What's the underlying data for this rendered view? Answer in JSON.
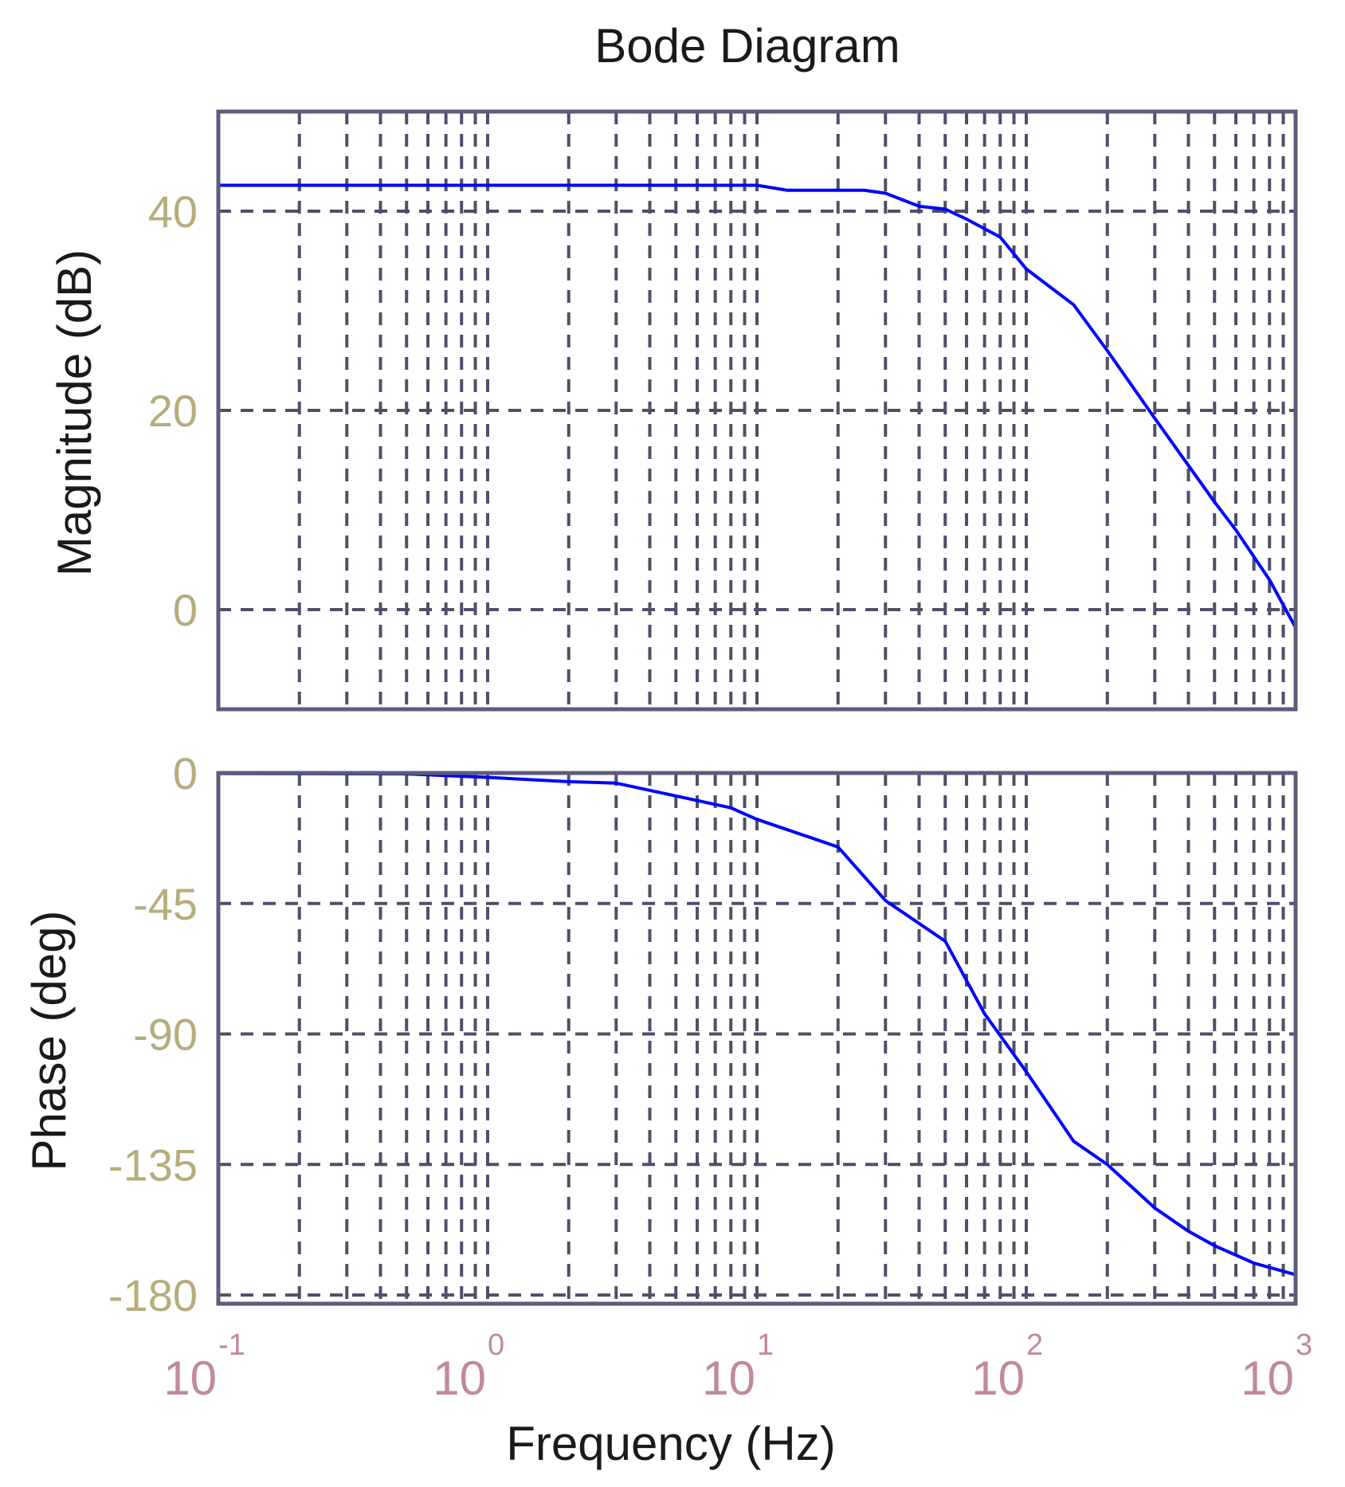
{
  "chart_data": {
    "type": "line",
    "title": "Bode Diagram",
    "xlabel": "Frequency  (Hz)",
    "xscale": "log",
    "xlim": [
      0.1,
      1000
    ],
    "x_ticks": [
      {
        "base": "10",
        "exp": "-1"
      },
      {
        "base": "10",
        "exp": "0"
      },
      {
        "base": "10",
        "exp": "1"
      },
      {
        "base": "10",
        "exp": "2"
      },
      {
        "base": "10",
        "exp": "3"
      }
    ],
    "grid": true,
    "colors": {
      "curve": "#0000ff",
      "frame": "#5c5c7c",
      "grid": "#4f4f6a"
    },
    "panels": [
      {
        "name": "magnitude",
        "ylabel": "Magnitude (dB)",
        "ylim": [
          -10,
          50
        ],
        "yticks": [
          0,
          20,
          40
        ],
        "series": [
          {
            "x": [
              0.1,
              1,
              10,
              13,
              20,
              25,
              30,
              40,
              50,
              60,
              80,
              100,
              150,
              200,
              300,
              500,
              600,
              800,
              1000
            ],
            "y": [
              42.6,
              42.6,
              42.6,
              42.1,
              42.1,
              42.1,
              41.8,
              40.5,
              40.2,
              39.2,
              37.4,
              34.2,
              30.6,
              26.0,
              19.2,
              10.8,
              8.0,
              3.0,
              -1.8
            ]
          }
        ]
      },
      {
        "name": "phase",
        "ylabel": "Phase (deg)",
        "ylim": [
          -183,
          0
        ],
        "yticks": [
          0,
          -45,
          -90,
          -135,
          -180
        ],
        "series": [
          {
            "x": [
              0.1,
              0.5,
              1,
              2,
              3,
              4,
              6,
              8,
              10,
              20,
              30,
              50,
              70,
              100,
              150,
              200,
              300,
              400,
              500,
              700,
              1000
            ],
            "y": [
              -0.2,
              -0.3,
              -1.5,
              -3,
              -3.5,
              -6,
              -9.5,
              -12,
              -16,
              -25.5,
              -44,
              -58,
              -83,
              -103,
              -127,
              -135,
              -150,
              -158,
              -163,
              -169,
              -173
            ]
          }
        ]
      }
    ]
  }
}
